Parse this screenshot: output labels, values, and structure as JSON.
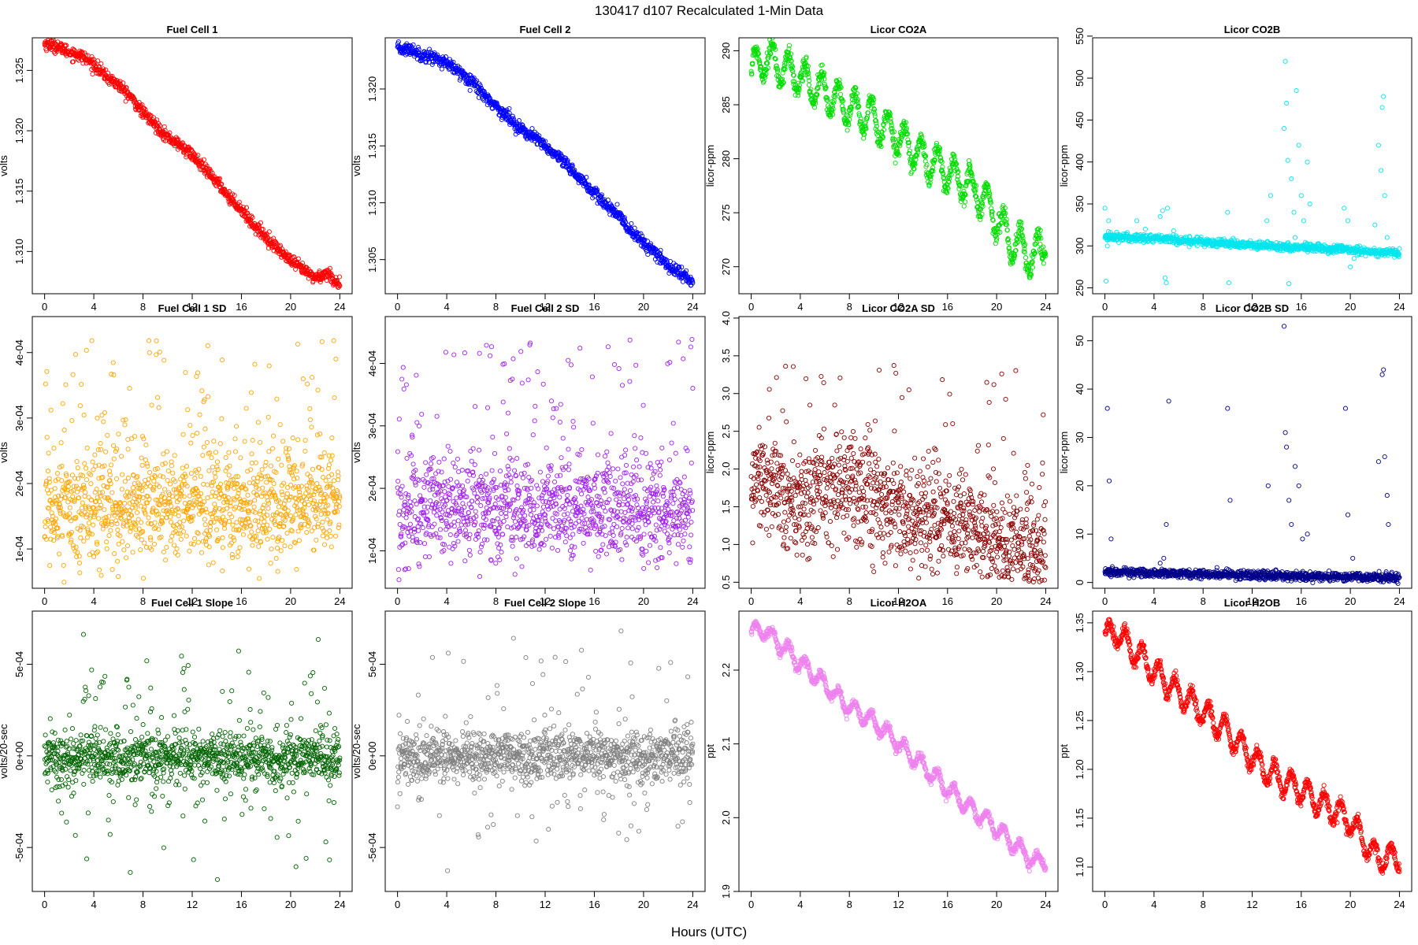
{
  "page": {
    "title": "130417   d107   Recalculated 1-Min Data",
    "xlabel": "Hours (UTC)"
  },
  "chart_data": [
    {
      "type": "scatter",
      "title": "Fuel Cell 1",
      "ylabel": "volts",
      "color": "#ff0000",
      "pattern": "decline",
      "xlim": [
        -1,
        25
      ],
      "ylim": [
        1.3065,
        1.3277
      ],
      "xticks": [
        0,
        4,
        8,
        12,
        16,
        20,
        24
      ],
      "yticks": [
        1.31,
        1.315,
        1.32,
        1.325
      ],
      "ytick_labels": [
        "1.310",
        "1.315",
        "1.320",
        "1.325"
      ],
      "x": [
        0,
        1,
        2,
        3,
        4,
        5,
        6,
        7,
        8,
        9,
        10,
        11,
        12,
        13,
        14,
        15,
        16,
        17,
        18,
        19,
        20,
        21,
        22,
        23,
        24
      ],
      "y": [
        1.3272,
        1.327,
        1.3265,
        1.3262,
        1.3255,
        1.3245,
        1.3238,
        1.3228,
        1.3215,
        1.3205,
        1.3195,
        1.3188,
        1.318,
        1.3168,
        1.3158,
        1.3145,
        1.3135,
        1.3122,
        1.3112,
        1.3102,
        1.3092,
        1.3085,
        1.3078,
        1.3082,
        1.3072
      ],
      "noise": 0.00025,
      "points": 900
    },
    {
      "type": "scatter",
      "title": "Fuel Cell 2",
      "ylabel": "volts",
      "color": "#0000ff",
      "pattern": "decline",
      "xlim": [
        -1,
        25
      ],
      "ylim": [
        1.302,
        1.3245
      ],
      "xticks": [
        0,
        4,
        8,
        12,
        16,
        20,
        24
      ],
      "yticks": [
        1.305,
        1.31,
        1.315,
        1.32
      ],
      "ytick_labels": [
        "1.305",
        "1.310",
        "1.315",
        "1.320"
      ],
      "x": [
        0,
        1,
        2,
        3,
        4,
        5,
        6,
        7,
        8,
        9,
        10,
        11,
        12,
        13,
        14,
        15,
        16,
        17,
        18,
        19,
        20,
        21,
        22,
        23,
        24
      ],
      "y": [
        1.3235,
        1.3235,
        1.323,
        1.3228,
        1.3222,
        1.3215,
        1.3208,
        1.3195,
        1.3185,
        1.3175,
        1.3165,
        1.3158,
        1.315,
        1.314,
        1.313,
        1.312,
        1.3108,
        1.3098,
        1.3088,
        1.3075,
        1.3065,
        1.3055,
        1.3045,
        1.3038,
        1.303
      ],
      "noise": 0.00028,
      "points": 900
    },
    {
      "type": "scatter",
      "title": "Licor CO2A",
      "ylabel": "licor-ppm",
      "color": "#00dd00",
      "pattern": "decline",
      "xlim": [
        -1,
        25
      ],
      "ylim": [
        267.5,
        291.2
      ],
      "xticks": [
        0,
        4,
        8,
        12,
        16,
        20,
        24
      ],
      "yticks": [
        270,
        275,
        280,
        285,
        290
      ],
      "ytick_labels": [
        "270",
        "275",
        "280",
        "285",
        "290"
      ],
      "x": [
        0,
        1,
        2,
        3,
        4,
        5,
        6,
        7,
        8,
        9,
        10,
        11,
        12,
        13,
        14,
        15,
        16,
        17,
        18,
        19,
        20,
        21,
        22,
        23,
        24
      ],
      "y": [
        288,
        289.5,
        288.8,
        288.2,
        287.6,
        286.8,
        286.2,
        285.4,
        284.8,
        284.2,
        283.8,
        282.8,
        282,
        281,
        280.2,
        279.5,
        278.8,
        278,
        277.4,
        276.2,
        274.6,
        272.5,
        272,
        270.5,
        272.5
      ],
      "noise": 0.4,
      "osc_amp": 1.6,
      "osc_period": 1.35,
      "points": 1000
    },
    {
      "type": "scatter",
      "title": "Licor CO2B",
      "ylabel": "licor-ppm",
      "color": "#00e5ee",
      "pattern": "flat_spikes",
      "xlim": [
        -1,
        25
      ],
      "ylim": [
        243,
        548
      ],
      "xticks": [
        0,
        4,
        8,
        12,
        16,
        20,
        24
      ],
      "yticks": [
        250,
        300,
        350,
        400,
        450,
        500,
        550
      ],
      "ytick_labels": [
        "250",
        "300",
        "350",
        "400",
        "450",
        "500",
        "550"
      ],
      "x": [
        0,
        4,
        8,
        12,
        16,
        20,
        24
      ],
      "y": [
        311,
        309,
        305,
        301,
        298,
        295,
        291
      ],
      "noise": 2.5,
      "spikes": [
        [
          0,
          345
        ],
        [
          0.1,
          258
        ],
        [
          0.3,
          330
        ],
        [
          0.2,
          300
        ],
        [
          2.6,
          330
        ],
        [
          3.3,
          320
        ],
        [
          4.5,
          335
        ],
        [
          4.7,
          342
        ],
        [
          4.9,
          262
        ],
        [
          5.0,
          256
        ],
        [
          5.1,
          345
        ],
        [
          5.6,
          318
        ],
        [
          10,
          340
        ],
        [
          10.1,
          256
        ],
        [
          13.2,
          330
        ],
        [
          13.5,
          360
        ],
        [
          14.6,
          440
        ],
        [
          14.7,
          520
        ],
        [
          14.8,
          470
        ],
        [
          14.9,
          402
        ],
        [
          15.0,
          255
        ],
        [
          15.2,
          380
        ],
        [
          15.4,
          340
        ],
        [
          15.5,
          310
        ],
        [
          15.6,
          485
        ],
        [
          15.8,
          420
        ],
        [
          16.0,
          360
        ],
        [
          16.2,
          330
        ],
        [
          16.5,
          400
        ],
        [
          16.7,
          350
        ],
        [
          17.0,
          300
        ],
        [
          19.5,
          345
        ],
        [
          19.8,
          330
        ],
        [
          20.0,
          275
        ],
        [
          20.3,
          285
        ],
        [
          22.0,
          325
        ],
        [
          22.3,
          420
        ],
        [
          22.5,
          390
        ],
        [
          22.6,
          465
        ],
        [
          22.7,
          478
        ],
        [
          22.8,
          360
        ],
        [
          23.0,
          310
        ]
      ],
      "points": 1000
    },
    {
      "type": "scatter",
      "title": "Fuel Cell 1 SD",
      "ylabel": "volts",
      "color": "#ffa500",
      "pattern": "sd",
      "xlim": [
        -1,
        25
      ],
      "ylim": [
        4e-05,
        0.000455
      ],
      "xticks": [
        0,
        4,
        8,
        12,
        16,
        20,
        24
      ],
      "yticks": [
        0.0001,
        0.0002,
        0.0003,
        0.0004
      ],
      "ytick_labels": [
        "1e-04",
        "2e-04",
        "3e-04",
        "4e-04"
      ],
      "center": 0.000165,
      "spread": 4e-05,
      "outlier_rate": 0.12,
      "outlier_max": 0.00042,
      "points": 1200
    },
    {
      "type": "scatter",
      "title": "Fuel Cell 2 SD",
      "ylabel": "volts",
      "color": "#a020f0",
      "pattern": "sd",
      "xlim": [
        -1,
        25
      ],
      "ylim": [
        4e-05,
        0.000475
      ],
      "xticks": [
        0,
        4,
        8,
        12,
        16,
        20,
        24
      ],
      "yticks": [
        0.0001,
        0.0002,
        0.0003,
        0.0004
      ],
      "ytick_labels": [
        "1e-04",
        "2e-04",
        "3e-04",
        "4e-04"
      ],
      "center": 0.000165,
      "spread": 4e-05,
      "outlier_rate": 0.12,
      "outlier_max": 0.00044,
      "points": 1200
    },
    {
      "type": "scatter",
      "title": "Licor CO2A SD",
      "ylabel": "licor-ppm",
      "color": "#8b0000",
      "pattern": "sd_trend",
      "xlim": [
        -1,
        25
      ],
      "ylim": [
        0.42,
        4.02
      ],
      "xticks": [
        0,
        4,
        8,
        12,
        16,
        20,
        24
      ],
      "yticks": [
        0.5,
        1.0,
        1.5,
        2.0,
        2.5,
        3.0,
        3.5,
        4.0
      ],
      "ytick_labels": [
        "0.5",
        "1.0",
        "1.5",
        "2.0",
        "2.5",
        "3.0",
        "3.5",
        "4.0"
      ],
      "x": [
        0,
        4,
        8,
        12,
        16,
        20,
        24
      ],
      "y": [
        1.9,
        1.5,
        1.75,
        1.4,
        1.3,
        1.05,
        1.0
      ],
      "spread": 0.35,
      "outlier_rate": 0.06,
      "outlier_max": 3.9,
      "points": 1200
    },
    {
      "type": "scatter",
      "title": "Licor CO2B SD",
      "ylabel": "licor-ppm",
      "color": "#00008b",
      "pattern": "flat_spikes",
      "xlim": [
        -1,
        25
      ],
      "ylim": [
        -1.2,
        55
      ],
      "xticks": [
        0,
        4,
        8,
        12,
        16,
        20,
        24
      ],
      "yticks": [
        0,
        10,
        20,
        30,
        40,
        50
      ],
      "ytick_labels": [
        "0",
        "10",
        "20",
        "30",
        "40",
        "50"
      ],
      "x": [
        0,
        4,
        8,
        12,
        16,
        20,
        24
      ],
      "y": [
        2.2,
        1.9,
        1.8,
        1.5,
        1.3,
        1.1,
        0.9
      ],
      "noise": 0.45,
      "spikes": [
        [
          0.2,
          36
        ],
        [
          0.35,
          21
        ],
        [
          0.5,
          9
        ],
        [
          4.5,
          4
        ],
        [
          4.8,
          5
        ],
        [
          5.0,
          12
        ],
        [
          5.2,
          37.5
        ],
        [
          10.0,
          36
        ],
        [
          10.2,
          17
        ],
        [
          13.3,
          20
        ],
        [
          14.6,
          53
        ],
        [
          14.7,
          31
        ],
        [
          14.8,
          28
        ],
        [
          15.0,
          17
        ],
        [
          15.2,
          12
        ],
        [
          15.5,
          24
        ],
        [
          15.8,
          20
        ],
        [
          16.1,
          9
        ],
        [
          16.5,
          10
        ],
        [
          19.6,
          36
        ],
        [
          19.8,
          14
        ],
        [
          20.2,
          5
        ],
        [
          22.3,
          25
        ],
        [
          22.6,
          43
        ],
        [
          22.7,
          44
        ],
        [
          22.8,
          26
        ],
        [
          23.0,
          18
        ],
        [
          23.1,
          12
        ]
      ],
      "points": 1000
    },
    {
      "type": "scatter",
      "title": "Fuel Cell 1 Slope",
      "ylabel": "volts/20-sec",
      "color": "#006400",
      "pattern": "slope",
      "xlim": [
        -1,
        25
      ],
      "ylim": [
        -0.00074,
        0.00079
      ],
      "xticks": [
        0,
        4,
        8,
        12,
        16,
        20,
        24
      ],
      "yticks": [
        -0.0005,
        0,
        0.0005
      ],
      "ytick_labels": [
        "-5e-04",
        "0e+00",
        "5e-04"
      ],
      "center": -1e-05,
      "spread": 6e-05,
      "outlier_rate": 0.18,
      "outlier_max": 0.00072,
      "points": 1200
    },
    {
      "type": "scatter",
      "title": "Fuel Cell 2 Slope",
      "ylabel": "volts/20-sec",
      "color": "#808080",
      "pattern": "slope",
      "xlim": [
        -1,
        25
      ],
      "ylim": [
        -0.00074,
        0.00079
      ],
      "xticks": [
        0,
        4,
        8,
        12,
        16,
        20,
        24
      ],
      "yticks": [
        -0.0005,
        0,
        0.0005
      ],
      "ytick_labels": [
        "-5e-04",
        "0e+00",
        "5e-04"
      ],
      "center": 0.0,
      "spread": 6e-05,
      "outlier_rate": 0.18,
      "outlier_max": 0.00072,
      "points": 1200
    },
    {
      "type": "scatter",
      "title": "Licor H2OA",
      "ylabel": "ppt",
      "color": "#ee82ee",
      "pattern": "decline",
      "xlim": [
        -1,
        25
      ],
      "ylim": [
        1.9,
        2.28
      ],
      "xticks": [
        0,
        4,
        8,
        12,
        16,
        20,
        24
      ],
      "yticks": [
        1.9,
        2.0,
        2.1,
        2.2
      ],
      "ytick_labels": [
        "1.9",
        "2.0",
        "2.1",
        "2.2"
      ],
      "x": [
        0,
        1,
        2,
        3,
        4,
        5,
        6,
        7,
        8,
        9,
        10,
        11,
        12,
        13,
        14,
        15,
        16,
        17,
        18,
        19,
        20,
        21,
        22,
        23,
        24
      ],
      "y": [
        2.25,
        2.255,
        2.24,
        2.225,
        2.21,
        2.195,
        2.18,
        2.165,
        2.15,
        2.14,
        2.13,
        2.115,
        2.1,
        2.085,
        2.07,
        2.055,
        2.04,
        2.025,
        2.01,
        2.0,
        1.985,
        1.97,
        1.955,
        1.94,
        1.945
      ],
      "noise": 0.003,
      "osc_amp": 0.011,
      "osc_period": 1.35,
      "points": 1000
    },
    {
      "type": "scatter",
      "title": "Licor H2OB",
      "ylabel": "ppt",
      "color": "#ff0000",
      "pattern": "decline",
      "xlim": [
        -1,
        25
      ],
      "ylim": [
        1.075,
        1.362
      ],
      "xticks": [
        0,
        4,
        8,
        12,
        16,
        20,
        24
      ],
      "yticks": [
        1.1,
        1.15,
        1.2,
        1.25,
        1.3,
        1.35
      ],
      "ytick_labels": [
        "1.10",
        "1.15",
        "1.20",
        "1.25",
        "1.30",
        "1.35"
      ],
      "x": [
        0,
        1,
        2,
        3,
        4,
        5,
        6,
        7,
        8,
        9,
        10,
        11,
        12,
        13,
        14,
        15,
        16,
        17,
        18,
        19,
        20,
        21,
        22,
        23,
        24
      ],
      "y": [
        1.335,
        1.34,
        1.325,
        1.315,
        1.3,
        1.29,
        1.278,
        1.268,
        1.258,
        1.248,
        1.238,
        1.226,
        1.212,
        1.2,
        1.192,
        1.185,
        1.178,
        1.17,
        1.162,
        1.158,
        1.145,
        1.13,
        1.11,
        1.11,
        1.11
      ],
      "noise": 0.003,
      "osc_amp": 0.013,
      "osc_period": 1.35,
      "points": 1000
    }
  ]
}
